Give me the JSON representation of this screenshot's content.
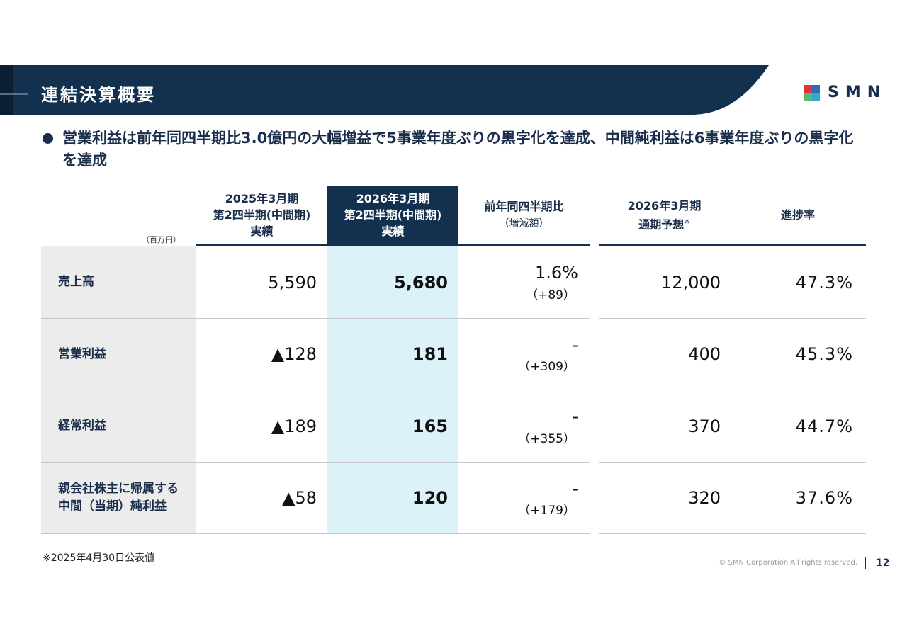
{
  "header": {
    "title": "連結決算概要",
    "logo": "SMN"
  },
  "bullet": "営業利益は前年同四半期比3.0億円の大幅増益で5事業年度ぶりの黒字化を達成、中間純利益は6事業年度ぶりの黒字化を達成",
  "table": {
    "unit": "（百万円）",
    "columns": [
      {
        "lines": [
          "2025年3月期",
          "第2四半期(中間期)",
          "実績"
        ]
      },
      {
        "lines": [
          "2026年3月期",
          "第2四半期(中間期)",
          "実績"
        ]
      },
      {
        "lines": [
          "前年同四半期比",
          "（増減額）"
        ]
      },
      {
        "lines": [
          "2026年3月期",
          "通期予想"
        ],
        "note": "※"
      },
      {
        "lines": [
          "進捗率"
        ]
      }
    ],
    "rows": [
      {
        "label": [
          "売上高"
        ],
        "prev": "5,590",
        "curr": "5,680",
        "yoy": "1.6%",
        "diff": "（+89）",
        "forecast": "12,000",
        "progress": "47.3%"
      },
      {
        "label": [
          "営業利益"
        ],
        "prev": "▲128",
        "curr": "181",
        "yoy": "-",
        "diff": "（+309）",
        "forecast": "400",
        "progress": "45.3%"
      },
      {
        "label": [
          "経常利益"
        ],
        "prev": "▲189",
        "curr": "165",
        "yoy": "-",
        "diff": "（+355）",
        "forecast": "370",
        "progress": "44.7%"
      },
      {
        "label": [
          "親会社株主に帰属する",
          "中間（当期）純利益"
        ],
        "prev": "▲58",
        "curr": "120",
        "yoy": "-",
        "diff": "（+179）",
        "forecast": "320",
        "progress": "37.6%"
      }
    ]
  },
  "footnote": "※2025年4月30日公表値",
  "copyright": "© SMN Corporation All rights reserved.",
  "page": "12"
}
